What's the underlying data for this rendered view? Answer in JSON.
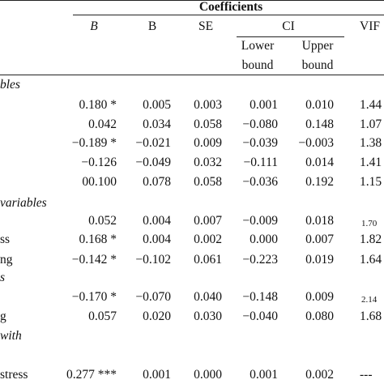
{
  "table": {
    "super_header": "Coefficients",
    "headers": {
      "b_italic": "B",
      "b": "B",
      "se": "SE",
      "ci": "CI",
      "vif": "VIF",
      "lower_1": "Lower",
      "lower_2": "bound",
      "upper_1": "Upper",
      "upper_2": "bound"
    },
    "sections": [
      {
        "label": "bles"
      },
      {
        "label": "variables"
      },
      {
        "label": "s"
      },
      {
        "label": "with"
      }
    ],
    "rows": [
      {
        "label": "",
        "b_std": "0.180 *",
        "b": "0.005",
        "se": "0.003",
        "lower": "0.001",
        "upper": "0.010",
        "vif": "1.44"
      },
      {
        "label": "",
        "b_std": "0.042",
        "b": "0.034",
        "se": "0.058",
        "lower": "−0.080",
        "upper": "0.148",
        "vif": "1.07"
      },
      {
        "label": "",
        "b_std": "−0.189 *",
        "b": "−0.021",
        "se": "0.009",
        "lower": "−0.039",
        "upper": "−0.003",
        "vif": "1.38"
      },
      {
        "label": "",
        "b_std": "−0.126",
        "b": "−0.049",
        "se": "0.032",
        "lower": "−0.111",
        "upper": "0.014",
        "vif": "1.41"
      },
      {
        "label": "",
        "b_std": "00.100",
        "b": "0.078",
        "se": "0.058",
        "lower": "−0.036",
        "upper": "0.192",
        "vif": "1.15"
      },
      {
        "label": "",
        "b_std": "0.052",
        "b": "0.004",
        "se": "0.007",
        "lower": "−0.009",
        "upper": "0.018",
        "vif": "1.70"
      },
      {
        "label": "ss",
        "b_std": "0.168 *",
        "b": "0.004",
        "se": "0.002",
        "lower": "0.000",
        "upper": "0.007",
        "vif": "1.82"
      },
      {
        "label": "ng",
        "b_std": "−0.142 *",
        "b": "−0.102",
        "se": "0.061",
        "lower": "−0.223",
        "upper": "0.019",
        "vif": "1.64"
      },
      {
        "label": "",
        "b_std": "−0.170 *",
        "b": "−0.070",
        "se": "0.040",
        "lower": "−0.148",
        "upper": "0.009",
        "vif": "2.14"
      },
      {
        "label": "g",
        "b_std": "0.057",
        "b": "0.020",
        "se": "0.030",
        "lower": "−0.040",
        "upper": "0.080",
        "vif": "1.68"
      },
      {
        "label": "stress",
        "b_std": "0.277 ***",
        "b": "0.001",
        "se": "0.000",
        "lower": "0.001",
        "upper": "0.002",
        "vif": "---"
      }
    ]
  }
}
